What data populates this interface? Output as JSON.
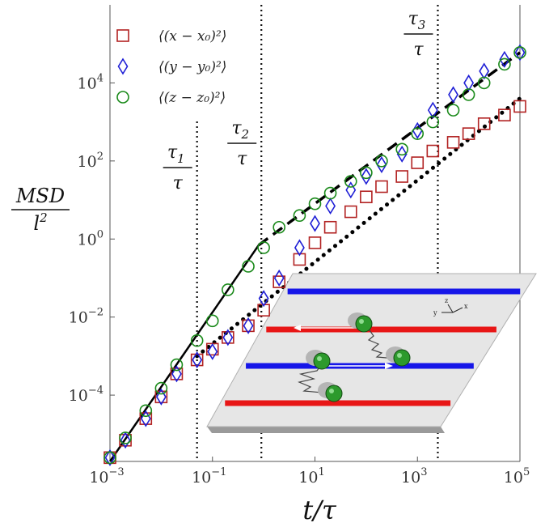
{
  "chart_data": {
    "type": "scatter",
    "x_scale": "log",
    "y_scale": "log",
    "xlim": [
      0.001,
      100000
    ],
    "ylim": [
      2e-06,
      1000000
    ],
    "xlabel": "t/τ",
    "ylabel": "MSD / l²",
    "x_ticks": [
      {
        "base": "10",
        "exp": "−3",
        "value": 0.001
      },
      {
        "base": "10",
        "exp": "−1",
        "value": 0.1
      },
      {
        "base": "10",
        "exp": "1",
        "value": 10
      },
      {
        "base": "10",
        "exp": "3",
        "value": 1000
      },
      {
        "base": "10",
        "exp": "5",
        "value": 100000
      }
    ],
    "y_ticks": [
      {
        "base": "10",
        "exp": "−4",
        "value": 0.0001
      },
      {
        "base": "10",
        "exp": "−2",
        "value": 0.01
      },
      {
        "base": "10",
        "exp": "0",
        "value": 1
      },
      {
        "base": "10",
        "exp": "2",
        "value": 100
      },
      {
        "base": "10",
        "exp": "4",
        "value": 10000
      }
    ],
    "legend_position": "top-left",
    "series": [
      {
        "name": "⟨(x − x₀)²⟩",
        "marker": "square",
        "color": "#b22222",
        "x": [
          0.001,
          0.002,
          0.005,
          0.01,
          0.02,
          0.05,
          0.1,
          0.2,
          0.5,
          1,
          2,
          5,
          10,
          20,
          50,
          100,
          200,
          500,
          1000,
          2000,
          5000,
          10000,
          20000,
          50000,
          100000
        ],
        "y": [
          2.5e-06,
          7e-06,
          2.5e-05,
          9e-05,
          0.00035,
          0.0008,
          0.0015,
          0.003,
          0.006,
          0.015,
          0.08,
          0.3,
          0.8,
          2,
          5,
          12,
          22,
          40,
          90,
          180,
          300,
          500,
          900,
          1500,
          2500
        ]
      },
      {
        "name": "⟨(y − y₀)²⟩",
        "marker": "diamond",
        "color": "#1f1fd6",
        "x": [
          0.001,
          0.002,
          0.005,
          0.01,
          0.02,
          0.05,
          0.1,
          0.2,
          0.5,
          1,
          2,
          5,
          10,
          20,
          50,
          100,
          200,
          500,
          1000,
          2000,
          5000,
          10000,
          20000,
          50000,
          100000
        ],
        "y": [
          2.5e-06,
          7e-06,
          2.5e-05,
          9e-05,
          0.00035,
          0.0008,
          0.0013,
          0.003,
          0.006,
          0.03,
          0.1,
          0.6,
          2.5,
          7,
          18,
          40,
          80,
          150,
          600,
          2000,
          5000,
          10000,
          20000,
          40000,
          60000
        ]
      },
      {
        "name": "⟨(z − z₀)²⟩",
        "marker": "circle",
        "color": "#1a8a1a",
        "x": [
          0.001,
          0.002,
          0.005,
          0.01,
          0.02,
          0.05,
          0.1,
          0.2,
          0.5,
          1,
          2,
          5,
          10,
          20,
          50,
          100,
          200,
          500,
          1000,
          2000,
          5000,
          10000,
          20000,
          50000,
          100000
        ],
        "y": [
          2.5e-06,
          8e-06,
          4e-05,
          0.00015,
          0.0006,
          0.0025,
          0.008,
          0.05,
          0.2,
          0.6,
          2,
          4,
          8,
          15,
          30,
          50,
          100,
          200,
          500,
          1000,
          2000,
          5000,
          10000,
          30000,
          60000
        ]
      }
    ],
    "fit_lines": [
      {
        "style": "solid",
        "x": [
          0.001,
          0.8
        ],
        "y": [
          2e-06,
          0.7
        ]
      },
      {
        "style": "dashed",
        "x": [
          0.8,
          100000
        ],
        "y": [
          0.7,
          60000
        ]
      },
      {
        "style": "dotted",
        "x": [
          0.05,
          100000
        ],
        "y": [
          0.001,
          4000
        ]
      }
    ],
    "vlines": [
      {
        "x": 0.05,
        "label_num": "τ",
        "label_sub": "1",
        "label_den": "τ"
      },
      {
        "x": 0.9,
        "label_num": "τ",
        "label_sub": "2",
        "label_den": "τ"
      },
      {
        "x": 2500,
        "label_num": "τ",
        "label_sub": "3",
        "label_den": "τ"
      }
    ],
    "inset": {
      "image": "schematic of particles tethered between red and blue lanes",
      "axis_labels": [
        "z",
        "y",
        "x"
      ]
    }
  }
}
